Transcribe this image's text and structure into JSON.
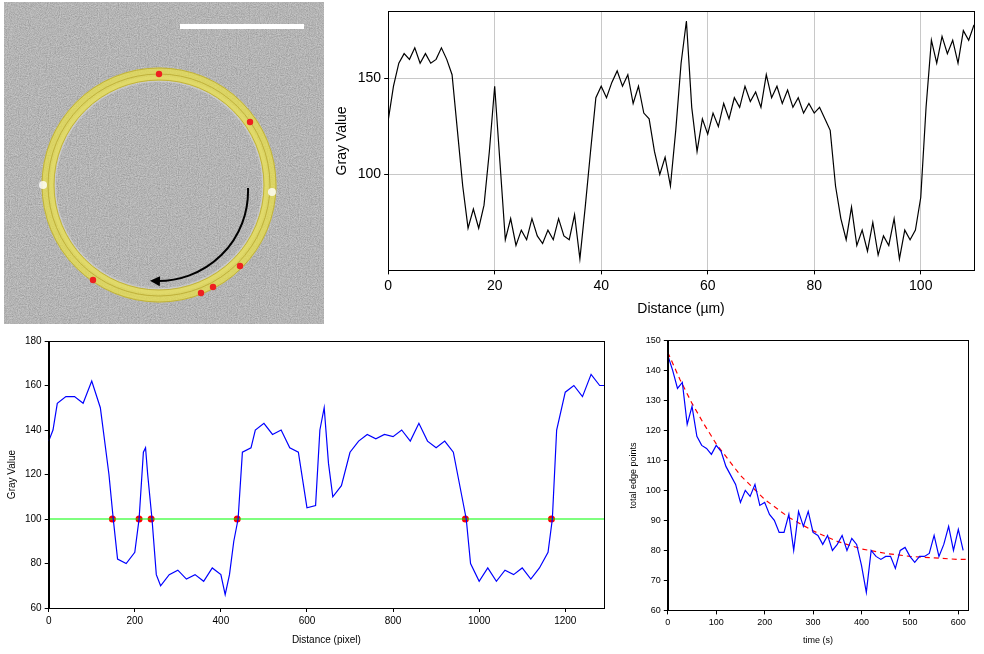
{
  "chart_data": [
    {
      "type": "line",
      "xlabel": "Distance (µm)",
      "ylabel": "Gray Value",
      "xlim": [
        0,
        110
      ],
      "xticks": [
        0,
        20,
        40,
        60,
        80,
        100
      ],
      "ylim": [
        50,
        185
      ],
      "yticks": [
        100,
        150
      ],
      "grid": true,
      "series": [
        {
          "type": "line",
          "color": "#000000",
          "x": [
            0,
            1,
            2,
            3,
            4,
            5,
            6,
            7,
            8,
            9,
            10,
            11,
            12,
            13,
            14,
            15,
            16,
            17,
            18,
            19,
            20,
            21,
            22,
            23,
            24,
            25,
            26,
            27,
            28,
            29,
            30,
            31,
            32,
            33,
            34,
            35,
            36,
            37,
            38,
            39,
            40,
            41,
            42,
            43,
            44,
            45,
            46,
            47,
            48,
            49,
            50,
            51,
            52,
            53,
            54,
            55,
            56,
            57,
            58,
            59,
            60,
            61,
            62,
            63,
            64,
            65,
            66,
            67,
            68,
            69,
            70,
            71,
            72,
            73,
            74,
            75,
            76,
            77,
            78,
            79,
            80,
            81,
            82,
            83,
            84,
            85,
            86,
            87,
            88,
            89,
            90,
            91,
            92,
            93,
            94,
            95,
            96,
            97,
            98,
            99,
            100,
            101,
            102,
            103,
            104,
            105,
            106,
            107,
            108,
            109,
            110
          ],
          "values": [
            128,
            146,
            158,
            163,
            160,
            166,
            158,
            163,
            158,
            160,
            166,
            160,
            152,
            123,
            94,
            72,
            82,
            72,
            84,
            112,
            146,
            106,
            66,
            77,
            63,
            71,
            66,
            77,
            68,
            64,
            71,
            66,
            77,
            68,
            66,
            79,
            56,
            83,
            112,
            140,
            146,
            140,
            148,
            154,
            146,
            152,
            137,
            146,
            132,
            129,
            112,
            100,
            109,
            94,
            123,
            158,
            180,
            135,
            112,
            129,
            121,
            132,
            125,
            137,
            129,
            140,
            135,
            146,
            138,
            143,
            135,
            152,
            140,
            146,
            137,
            144,
            135,
            140,
            132,
            137,
            132,
            135,
            129,
            123,
            94,
            77,
            66,
            83,
            63,
            71,
            60,
            75,
            58,
            68,
            63,
            77,
            56,
            71,
            66,
            71,
            88,
            135,
            170,
            158,
            172,
            163,
            170,
            158,
            175,
            170,
            178
          ]
        }
      ]
    },
    {
      "type": "line",
      "xlabel": "Distance (pixel)",
      "ylabel": "Gray Value",
      "xlim": [
        0,
        1290
      ],
      "xticks": [
        0,
        200,
        400,
        600,
        800,
        1000,
        1200
      ],
      "ylim": [
        60,
        180
      ],
      "yticks": [
        60,
        80,
        100,
        120,
        140,
        160,
        180
      ],
      "grid": false,
      "series": [
        {
          "type": "line",
          "color": "#0000ff",
          "x": [
            0,
            10,
            20,
            40,
            60,
            80,
            100,
            120,
            140,
            150,
            160,
            180,
            200,
            210,
            220,
            225,
            230,
            240,
            250,
            260,
            280,
            300,
            320,
            340,
            360,
            380,
            400,
            410,
            420,
            430,
            440,
            450,
            470,
            480,
            500,
            520,
            540,
            560,
            580,
            600,
            620,
            630,
            640,
            650,
            660,
            680,
            700,
            720,
            740,
            760,
            780,
            800,
            820,
            840,
            860,
            880,
            900,
            920,
            940,
            960,
            970,
            980,
            1000,
            1020,
            1040,
            1060,
            1080,
            1100,
            1120,
            1140,
            1160,
            1170,
            1180,
            1200,
            1220,
            1240,
            1260,
            1280,
            1290
          ],
          "values": [
            135,
            140,
            152,
            155,
            155,
            152,
            162,
            150,
            120,
            100,
            82,
            80,
            85,
            100,
            130,
            132,
            120,
            100,
            75,
            70,
            75,
            77,
            73,
            75,
            72,
            78,
            75,
            66,
            75,
            90,
            100,
            130,
            132,
            140,
            143,
            138,
            140,
            132,
            130,
            105,
            106,
            140,
            150,
            125,
            110,
            115,
            130,
            135,
            138,
            136,
            138,
            137,
            140,
            135,
            143,
            135,
            132,
            135,
            130,
            110,
            100,
            80,
            72,
            78,
            72,
            77,
            75,
            78,
            73,
            78,
            85,
            100,
            140,
            157,
            160,
            155,
            165,
            160,
            160
          ]
        },
        {
          "type": "line",
          "color": "#00ff00",
          "x": [
            0,
            1290
          ],
          "values": [
            100,
            100
          ]
        },
        {
          "type": "scatter",
          "color": "#ff0000",
          "marker": "circle",
          "x": [
            148,
            210,
            238,
            438,
            968,
            1168
          ],
          "values": [
            100,
            100,
            100,
            100,
            100,
            100
          ]
        }
      ]
    },
    {
      "type": "line",
      "xlabel": "time (s)",
      "ylabel": "total edge points",
      "xlim": [
        0,
        620
      ],
      "xticks": [
        0,
        100,
        200,
        300,
        400,
        500,
        600
      ],
      "ylim": [
        60,
        150
      ],
      "yticks": [
        60,
        70,
        80,
        90,
        100,
        110,
        120,
        130,
        140,
        150
      ],
      "grid": false,
      "series": [
        {
          "type": "line",
          "color": "#0000ff",
          "x": [
            0,
            10,
            20,
            30,
            40,
            50,
            60,
            70,
            80,
            90,
            100,
            110,
            120,
            130,
            140,
            150,
            160,
            170,
            180,
            190,
            200,
            210,
            220,
            230,
            240,
            250,
            260,
            270,
            280,
            290,
            300,
            310,
            320,
            330,
            340,
            350,
            360,
            370,
            380,
            390,
            400,
            410,
            420,
            430,
            440,
            450,
            460,
            470,
            480,
            490,
            500,
            510,
            520,
            530,
            540,
            550,
            560,
            570,
            580,
            590,
            600,
            610
          ],
          "values": [
            145,
            140,
            134,
            136,
            122,
            128,
            118,
            115,
            114,
            112,
            115,
            113,
            108,
            105,
            102,
            96,
            100,
            98,
            102,
            95,
            96,
            92,
            90,
            86,
            86,
            92,
            80,
            93,
            88,
            93,
            86,
            85,
            82,
            85,
            80,
            82,
            85,
            80,
            84,
            82,
            75,
            66,
            80,
            78,
            77,
            78,
            78,
            74,
            80,
            81,
            78,
            76,
            78,
            78,
            79,
            85,
            78,
            82,
            88,
            80,
            87,
            80
          ]
        },
        {
          "type": "line",
          "color": "#ff0000",
          "line_style": "dashed",
          "x": [
            0,
            25,
            50,
            75,
            100,
            150,
            200,
            250,
            300,
            350,
            400,
            450,
            500,
            550,
            600,
            620
          ],
          "values": [
            146,
            137,
            129,
            122,
            115.5,
            105,
            97,
            91,
            86.5,
            83,
            80.5,
            79,
            78,
            77.5,
            77,
            77
          ]
        }
      ]
    }
  ]
}
